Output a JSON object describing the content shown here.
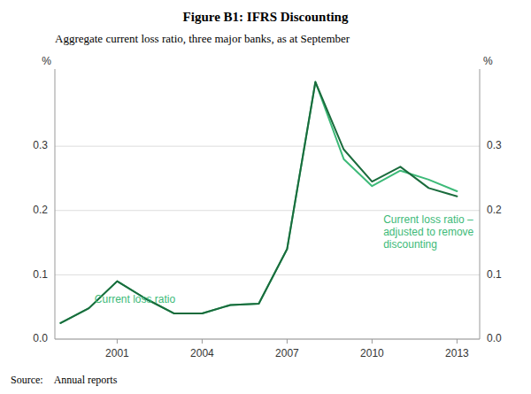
{
  "chart_data": {
    "type": "line",
    "title": "Figure B1: IFRS Discounting",
    "subtitle": "Aggregate current loss ratio, three major banks, as at September",
    "source_label": "Source:",
    "source": "Annual reports",
    "ylabel": "%",
    "y2label": "%",
    "x": [
      1999,
      2000,
      2001,
      2002,
      2003,
      2004,
      2005,
      2006,
      2007,
      2008,
      2009,
      2010,
      2011,
      2012,
      2013
    ],
    "xlim": [
      1998.8,
      2013.8
    ],
    "xticks": [
      2001,
      2004,
      2007,
      2010,
      2013
    ],
    "ylim": [
      0.0,
      0.42
    ],
    "yticks": [
      {
        "value": 0.0,
        "label": "0.0"
      },
      0.1,
      0.2,
      0.3
    ],
    "y2lim": [
      0.0,
      0.42
    ],
    "y2ticks": [
      {
        "value": 0.0,
        "label": "0.0"
      },
      0.1,
      0.2,
      0.3
    ],
    "grid": true,
    "series": [
      {
        "color": "#3dba78",
        "values": [
          0.025,
          0.048,
          0.09,
          0.063,
          0.04,
          0.04,
          0.053,
          0.055,
          0.14,
          0.4,
          0.28,
          0.238,
          0.262,
          0.248,
          0.23
        ]
      },
      {
        "color": "#1a6b3c",
        "values": [
          0.025,
          0.048,
          0.09,
          0.063,
          0.04,
          0.04,
          0.053,
          0.055,
          0.14,
          0.4,
          0.295,
          0.245,
          0.268,
          0.235,
          0.222
        ]
      }
    ],
    "annotations": [
      {
        "text": "Current loss ratio",
        "x": 2000.2,
        "y": 0.06,
        "color": "#3dba78"
      },
      {
        "text": "Current loss ratio –\nadjusted to remove\ndiscounting",
        "x": 2010.4,
        "y": 0.165,
        "color": "#3dba78"
      }
    ]
  }
}
